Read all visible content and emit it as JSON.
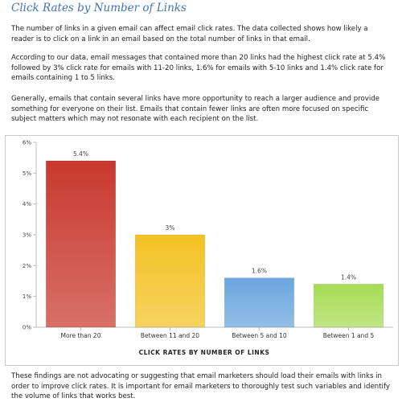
{
  "page": {
    "title": "Click Rates by Number of Links",
    "paragraphs": [
      "The number of links in a given email can affect email click rates. The data collected shows how likely a reader is to click on a link in an email based on the total number of links in that email.",
      "According to our data, email messages that contained more than 20 links had the highest click rate at 5.4% followed by 3% click rate for emails with 11-20 links, 1.6% for emails with 5-10 links and 1.4% click rate for emails containing 1 to 5 links.",
      "Generally, emails that contain several links have more opportunity to reach a larger audience and provide something for everyone on their list. Emails that contain fewer links are often more focused on specific subject matters which may not resonate with each recipient on the list.",
      "These findings are not advocating or suggesting that email marketers should load their emails with links in order to improve click rates. It is important for email marketers to thoroughly test such variables and identify the volume of links that works best."
    ]
  },
  "chart_data": {
    "type": "bar",
    "categories": [
      "More than 20",
      "Between 11 and 20",
      "Between 5 and 10",
      "Between 1 and 5"
    ],
    "values": [
      5.4,
      3,
      1.6,
      1.4
    ],
    "value_labels": [
      "5.4%",
      "3%",
      "1.6%",
      "1.4%"
    ],
    "colors": [
      "#c8392e",
      "#f3c223",
      "#6aa6de",
      "#a8dc55"
    ],
    "xlabel": "CLICK RATES BY NUMBER OF LINKS",
    "ylabel": "",
    "ylim": [
      0,
      6
    ],
    "yticks": [
      0,
      1,
      2,
      3,
      4,
      5,
      6
    ],
    "ytick_labels": [
      "0%",
      "1%",
      "2%",
      "3%",
      "4%",
      "5%",
      "6%"
    ],
    "grid": false,
    "legend": "none"
  }
}
